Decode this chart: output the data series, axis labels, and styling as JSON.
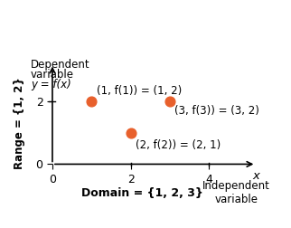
{
  "points": [
    [
      1,
      2
    ],
    [
      2,
      1
    ],
    [
      3,
      2
    ]
  ],
  "point_color": "#E8602C",
  "point_size": 60,
  "xlim": [
    0,
    5.2
  ],
  "ylim": [
    0,
    3.2
  ],
  "xticks": [
    0,
    2,
    4
  ],
  "yticks": [
    0,
    2
  ],
  "xlabel_x": "x",
  "xlabel_main": "Independent\nvariable",
  "ylabel_y": "y = f(x)",
  "ylabel_top1": "Dependent",
  "ylabel_top2": "variable",
  "ylabel_side": "Range = {1, 2}",
  "xlabel_bottom": "Domain = {1, 2, 3}",
  "label1": "(1, f(1)) = (1, 2)",
  "label2": "(2, f(2)) = (2, 1)",
  "label3": "(3, f(3)) = (3, 2)",
  "bg_color": "#ffffff",
  "text_color": "#000000",
  "fontsize": 8.5,
  "tick_fontsize": 9
}
